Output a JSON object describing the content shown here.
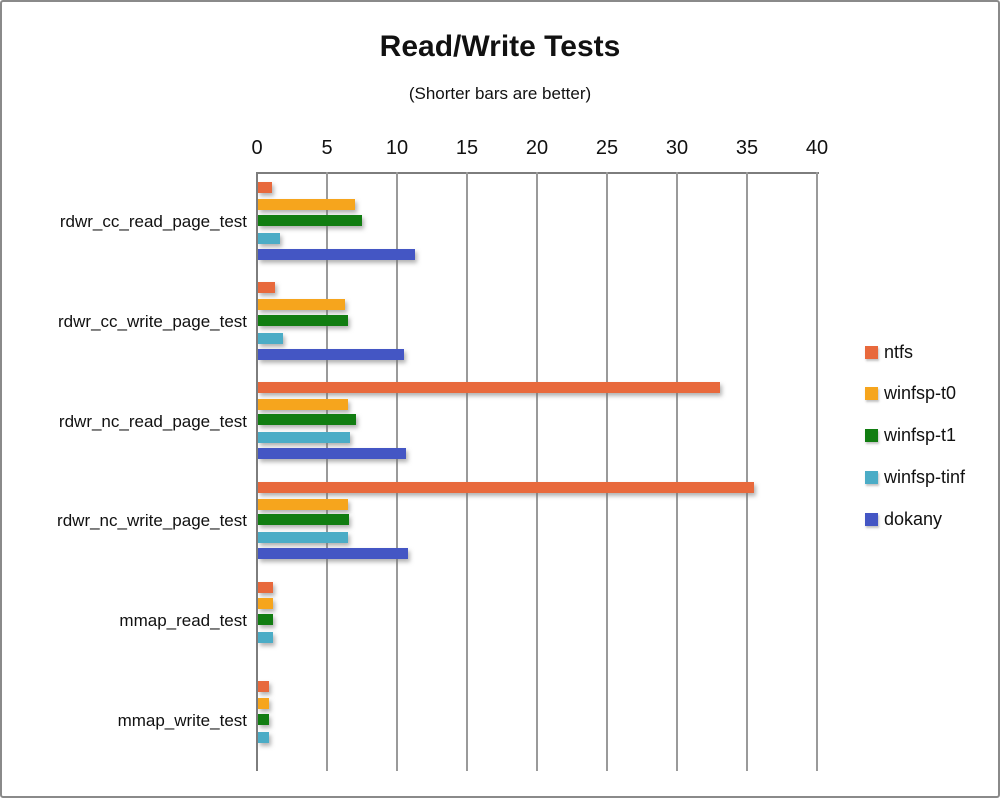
{
  "chart_data": {
    "type": "bar",
    "orientation": "horizontal",
    "title": "Read/Write Tests",
    "subtitle": "(Shorter bars are better)",
    "xlabel": "",
    "ylabel": "",
    "xlim": [
      0,
      40
    ],
    "x_ticks": [
      0,
      5,
      10,
      15,
      20,
      25,
      30,
      35,
      40
    ],
    "grid": true,
    "legend_position": "right",
    "categories": [
      "rdwr_cc_read_page_test",
      "rdwr_cc_write_page_test",
      "rdwr_nc_read_page_test",
      "rdwr_nc_write_page_test",
      "mmap_read_test",
      "mmap_write_test"
    ],
    "series": [
      {
        "name": "ntfs",
        "color": "#E8693C",
        "values": [
          1.0,
          1.2,
          33.0,
          35.4,
          1.1,
          0.8
        ]
      },
      {
        "name": "winfsp-t0",
        "color": "#F6A51D",
        "values": [
          6.9,
          6.2,
          6.4,
          6.4,
          1.1,
          0.8
        ]
      },
      {
        "name": "winfsp-t1",
        "color": "#117D11",
        "values": [
          7.4,
          6.4,
          7.0,
          6.5,
          1.1,
          0.8
        ]
      },
      {
        "name": "winfsp-tinf",
        "color": "#4BACC6",
        "values": [
          1.6,
          1.8,
          6.6,
          6.4,
          1.1,
          0.8
        ]
      },
      {
        "name": "dokany",
        "color": "#4456C4",
        "values": [
          11.2,
          10.4,
          10.6,
          10.7,
          null,
          null
        ]
      }
    ]
  }
}
